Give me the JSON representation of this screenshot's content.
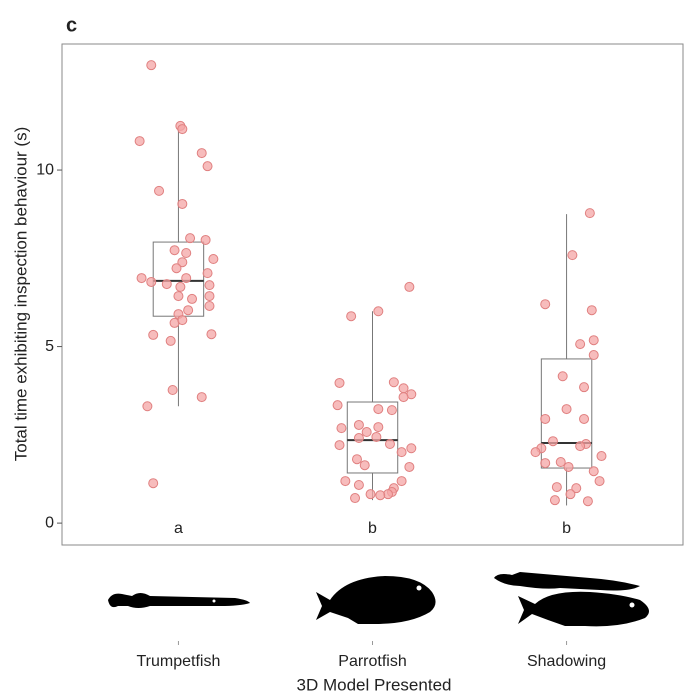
{
  "chart_data": {
    "type": "box",
    "panel_label": "c",
    "y_label": "Total time exhibiting inspection behaviour (s)",
    "x_label": "3D Model Presented",
    "categories": [
      "Trumpetfish",
      "Parrotfish",
      "Shadowing"
    ],
    "group_letters": [
      "a",
      "b",
      "b"
    ],
    "boxes": [
      {
        "min": 3.31,
        "q1": 5.86,
        "median": 6.86,
        "q3": 7.96,
        "max": 11.13
      },
      {
        "min": 0.65,
        "q1": 1.42,
        "median": 2.35,
        "q3": 3.43,
        "max": 6.0
      },
      {
        "min": 0.5,
        "q1": 1.56,
        "median": 2.27,
        "q3": 4.65,
        "max": 8.75
      }
    ],
    "points": {
      "color": "#f4a6a6",
      "x": [
        0.86,
        0.8,
        1.01,
        1.02,
        1.12,
        1.15,
        0.9,
        1.02,
        1.06,
        1.14,
        1.18,
        0.98,
        1.04,
        1.02,
        0.99,
        1.15,
        0.81,
        0.86,
        1.04,
        0.94,
        1.01,
        1.16,
        1.0,
        1.16,
        1.07,
        1.16,
        1.05,
        1.0,
        0.98,
        1.02,
        1.17,
        0.87,
        0.96,
        0.97,
        1.12,
        0.84,
        0.87,
        1.89,
        2.03,
        2.19,
        1.83,
        2.11,
        2.16,
        2.2,
        2.16,
        1.82,
        2.03,
        2.1,
        1.93,
        1.84,
        2.03,
        1.97,
        2.02,
        1.93,
        2.09,
        2.2,
        1.83,
        1.92,
        2.15,
        1.96,
        2.19,
        1.86,
        1.93,
        2.15,
        2.11,
        2.1,
        1.99,
        2.08,
        1.91,
        2.04,
        3.12,
        3.03,
        2.89,
        3.13,
        3.14,
        3.07,
        3.14,
        2.98,
        3.09,
        3.0,
        2.89,
        3.09,
        2.87,
        2.93,
        3.1,
        3.07,
        2.84,
        3.18,
        2.97,
        2.89,
        3.01,
        3.14,
        3.17,
        2.95,
        3.05,
        3.02,
        2.94,
        3.11
      ],
      "y": [
        12.97,
        10.82,
        11.25,
        11.16,
        10.48,
        10.11,
        9.41,
        9.04,
        8.07,
        8.02,
        7.48,
        7.73,
        7.65,
        7.39,
        7.22,
        7.08,
        6.94,
        6.83,
        6.94,
        6.77,
        6.69,
        6.74,
        6.43,
        6.43,
        6.35,
        6.15,
        6.03,
        5.92,
        5.67,
        5.75,
        5.35,
        5.33,
        5.16,
        3.77,
        3.57,
        3.31,
        1.13,
        5.86,
        6.0,
        6.69,
        3.97,
        3.99,
        3.82,
        3.65,
        3.57,
        3.34,
        3.23,
        3.2,
        2.78,
        2.69,
        2.72,
        2.58,
        2.44,
        2.41,
        2.24,
        2.12,
        2.21,
        1.81,
        2.01,
        1.64,
        1.59,
        1.19,
        1.08,
        1.19,
        0.99,
        0.88,
        0.82,
        0.82,
        0.71,
        0.79,
        8.78,
        7.59,
        6.2,
        6.03,
        5.18,
        5.07,
        4.76,
        4.16,
        3.85,
        3.23,
        2.95,
        2.95,
        2.12,
        2.32,
        2.24,
        2.18,
        2.01,
        1.9,
        1.73,
        1.7,
        1.59,
        1.47,
        1.19,
        1.02,
        0.99,
        0.82,
        0.65,
        0.62
      ]
    },
    "xlim": [
      0.4,
      3.6
    ],
    "ylim": [
      -0.62,
      13.57
    ],
    "yticks": [
      0,
      5,
      10
    ],
    "grid": false
  }
}
